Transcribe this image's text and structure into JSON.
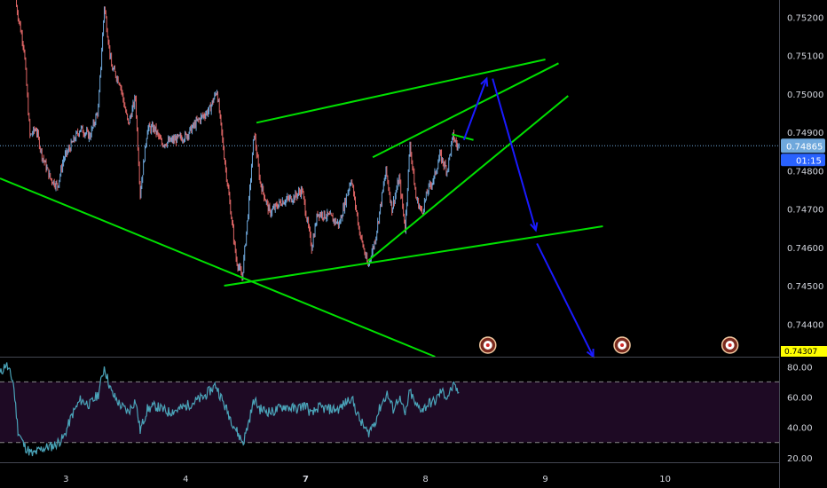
{
  "chart_data": [
    {
      "type": "candlestick",
      "title": "",
      "colors": {
        "up": "#6fa8dc",
        "down": "#e06666",
        "trendline": "#00e000",
        "arrow": "#1a1aff",
        "last_price_line": "#6fa8dc"
      },
      "x_ticks": [
        {
          "label": "3",
          "x": 3,
          "bold": false
        },
        {
          "label": "4",
          "x": 4,
          "bold": false
        },
        {
          "label": "7",
          "x": 5,
          "bold": true
        },
        {
          "label": "8",
          "x": 6,
          "bold": false
        },
        {
          "label": "9",
          "x": 7,
          "bold": false
        },
        {
          "label": "10",
          "x": 8,
          "bold": false
        }
      ],
      "xlim": [
        2.45,
        8.95
      ],
      "y_ticks": [
        "0.75200",
        "0.75100",
        "0.75000",
        "0.74900",
        "0.74800",
        "0.74700",
        "0.74600",
        "0.74500",
        "0.74400"
      ],
      "ylim": [
        0.74315,
        0.75245
      ],
      "last_price": {
        "label": "0.74865",
        "value": 0.74865,
        "countdown": "01:15"
      },
      "bottom_tag": {
        "label": "0.74307",
        "value": 0.74307,
        "color": "#ffff00"
      },
      "price_path": [
        [
          2.58,
          0.7524
        ],
        [
          2.65,
          0.7512
        ],
        [
          2.7,
          0.7489
        ],
        [
          2.75,
          0.7491
        ],
        [
          2.8,
          0.7484
        ],
        [
          2.87,
          0.7478
        ],
        [
          2.93,
          0.7476
        ],
        [
          2.98,
          0.7483
        ],
        [
          3.05,
          0.7487
        ],
        [
          3.12,
          0.7491
        ],
        [
          3.2,
          0.7489
        ],
        [
          3.27,
          0.7496
        ],
        [
          3.32,
          0.7523
        ],
        [
          3.38,
          0.7507
        ],
        [
          3.45,
          0.7503
        ],
        [
          3.52,
          0.7492
        ],
        [
          3.58,
          0.7499
        ],
        [
          3.62,
          0.7474
        ],
        [
          3.68,
          0.7491
        ],
        [
          3.74,
          0.7491
        ],
        [
          3.8,
          0.7487
        ],
        [
          3.9,
          0.7488
        ],
        [
          4.0,
          0.7489
        ],
        [
          4.1,
          0.7493
        ],
        [
          4.2,
          0.7496
        ],
        [
          4.26,
          0.7501
        ],
        [
          4.32,
          0.7484
        ],
        [
          4.38,
          0.7468
        ],
        [
          4.42,
          0.7457
        ],
        [
          4.47,
          0.7452
        ],
        [
          4.52,
          0.7469
        ],
        [
          4.57,
          0.749
        ],
        [
          4.62,
          0.7477
        ],
        [
          4.7,
          0.7469
        ],
        [
          4.8,
          0.7472
        ],
        [
          4.9,
          0.7473
        ],
        [
          4.97,
          0.7475
        ],
        [
          5.05,
          0.746
        ],
        [
          5.1,
          0.7469
        ],
        [
          5.2,
          0.7468
        ],
        [
          5.28,
          0.7466
        ],
        [
          5.38,
          0.7478
        ],
        [
          5.45,
          0.7464
        ],
        [
          5.52,
          0.7455
        ],
        [
          5.58,
          0.7462
        ],
        [
          5.63,
          0.7472
        ],
        [
          5.67,
          0.748
        ],
        [
          5.72,
          0.747
        ],
        [
          5.78,
          0.7478
        ],
        [
          5.83,
          0.7465
        ],
        [
          5.87,
          0.7487
        ],
        [
          5.92,
          0.7473
        ],
        [
          5.97,
          0.7469
        ],
        [
          6.02,
          0.7475
        ],
        [
          6.07,
          0.7478
        ],
        [
          6.12,
          0.7484
        ],
        [
          6.18,
          0.748
        ],
        [
          6.23,
          0.7489
        ],
        [
          6.27,
          0.7486
        ],
        [
          6.28,
          0.74865
        ]
      ],
      "trendlines": [
        {
          "x1": 2.45,
          "y1": 0.7478,
          "x2": 6.08,
          "y2": 0.74315
        },
        {
          "x1": 4.32,
          "y1": 0.745,
          "x2": 7.48,
          "y2": 0.74655
        },
        {
          "x1": 4.59,
          "y1": 0.74925,
          "x2": 7.0,
          "y2": 0.7509
        },
        {
          "x1": 5.56,
          "y1": 0.74835,
          "x2": 7.11,
          "y2": 0.7508
        },
        {
          "x1": 5.52,
          "y1": 0.74565,
          "x2": 7.19,
          "y2": 0.74995
        },
        {
          "x1": 6.22,
          "y1": 0.74895,
          "x2": 6.4,
          "y2": 0.7488
        }
      ],
      "arrows": [
        {
          "x1": 6.32,
          "y1": 0.7488,
          "x2": 6.51,
          "y2": 0.7504
        },
        {
          "x1": 6.56,
          "y1": 0.7504,
          "x2": 6.92,
          "y2": 0.74645
        },
        {
          "x1": 6.93,
          "y1": 0.7461,
          "x2": 7.4,
          "y2": 0.74315
        }
      ],
      "event_markers": [
        6.52,
        7.64,
        8.54
      ]
    },
    {
      "type": "line",
      "title": "",
      "y_ticks": [
        "80.00",
        "60.00",
        "40.00",
        "20.00"
      ],
      "ylim": [
        17,
        86
      ],
      "bands": {
        "upper": 70,
        "lower": 30,
        "fill": "#1e0a24"
      },
      "line_color": "#4aa3b8",
      "series": [
        {
          "name": "",
          "points": [
            [
              2.45,
              75
            ],
            [
              2.5,
              82
            ],
            [
              2.56,
              70
            ],
            [
              2.6,
              38
            ],
            [
              2.65,
              28
            ],
            [
              2.72,
              22
            ],
            [
              2.8,
              26
            ],
            [
              2.9,
              28
            ],
            [
              2.98,
              33
            ],
            [
              3.05,
              48
            ],
            [
              3.12,
              58
            ],
            [
              3.2,
              55
            ],
            [
              3.27,
              62
            ],
            [
              3.32,
              80
            ],
            [
              3.38,
              63
            ],
            [
              3.45,
              55
            ],
            [
              3.52,
              50
            ],
            [
              3.58,
              58
            ],
            [
              3.62,
              38
            ],
            [
              3.68,
              52
            ],
            [
              3.75,
              54
            ],
            [
              3.85,
              50
            ],
            [
              3.95,
              52
            ],
            [
              4.05,
              56
            ],
            [
              4.15,
              60
            ],
            [
              4.25,
              68
            ],
            [
              4.32,
              55
            ],
            [
              4.38,
              45
            ],
            [
              4.44,
              35
            ],
            [
              4.48,
              30
            ],
            [
              4.52,
              42
            ],
            [
              4.57,
              58
            ],
            [
              4.62,
              52
            ],
            [
              4.72,
              50
            ],
            [
              4.82,
              54
            ],
            [
              4.92,
              52
            ],
            [
              5.0,
              55
            ],
            [
              5.05,
              48
            ],
            [
              5.1,
              53
            ],
            [
              5.2,
              52
            ],
            [
              5.28,
              52
            ],
            [
              5.38,
              60
            ],
            [
              5.45,
              45
            ],
            [
              5.52,
              36
            ],
            [
              5.58,
              44
            ],
            [
              5.63,
              55
            ],
            [
              5.68,
              62
            ],
            [
              5.73,
              52
            ],
            [
              5.78,
              60
            ],
            [
              5.83,
              48
            ],
            [
              5.87,
              64
            ],
            [
              5.92,
              54
            ],
            [
              5.98,
              52
            ],
            [
              6.03,
              56
            ],
            [
              6.08,
              57
            ],
            [
              6.13,
              64
            ],
            [
              6.18,
              60
            ],
            [
              6.23,
              67
            ],
            [
              6.27,
              64
            ],
            [
              6.28,
              63
            ]
          ]
        }
      ]
    }
  ]
}
